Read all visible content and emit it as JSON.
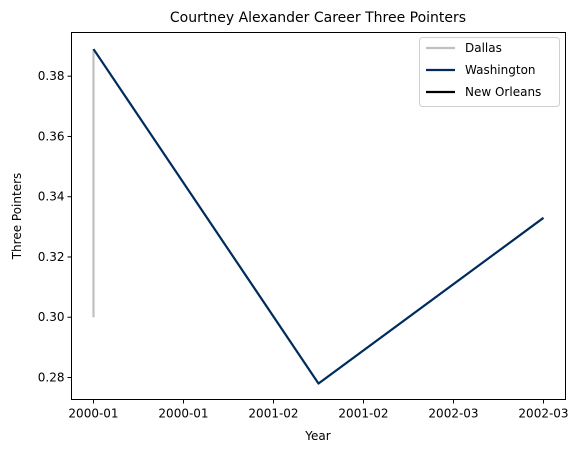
{
  "chart_data": {
    "type": "line",
    "title": "Courtney Alexander Career Three Pointers",
    "xlabel": "Year",
    "ylabel": "Three Pointers",
    "x_tick_labels": [
      "2000-01",
      "2000-01",
      "2001-02",
      "2001-02",
      "2002-03",
      "2002-03"
    ],
    "y_ticks": [
      0.28,
      0.3,
      0.32,
      0.34,
      0.36,
      0.38
    ],
    "y_tick_labels": [
      "0.28",
      "0.30",
      "0.32",
      "0.34",
      "0.36",
      "0.38"
    ],
    "ylim": [
      0.2727,
      0.3945
    ],
    "grid": false,
    "legend_position": "top-right",
    "series": [
      {
        "name": "Dallas",
        "color": "#c0c0c0",
        "points": [
          {
            "x": "2000-01",
            "y": 0.3
          },
          {
            "x": "2000-01",
            "y": 0.389
          }
        ]
      },
      {
        "name": "Washington",
        "color": "#002b5c",
        "points": [
          {
            "x": "2000-01",
            "y": 0.389
          },
          {
            "x": "2001-02",
            "y": 0.278
          },
          {
            "x": "2002-03",
            "y": 0.333
          }
        ]
      },
      {
        "name": "New Orleans",
        "color": "#000000",
        "points": []
      }
    ]
  }
}
